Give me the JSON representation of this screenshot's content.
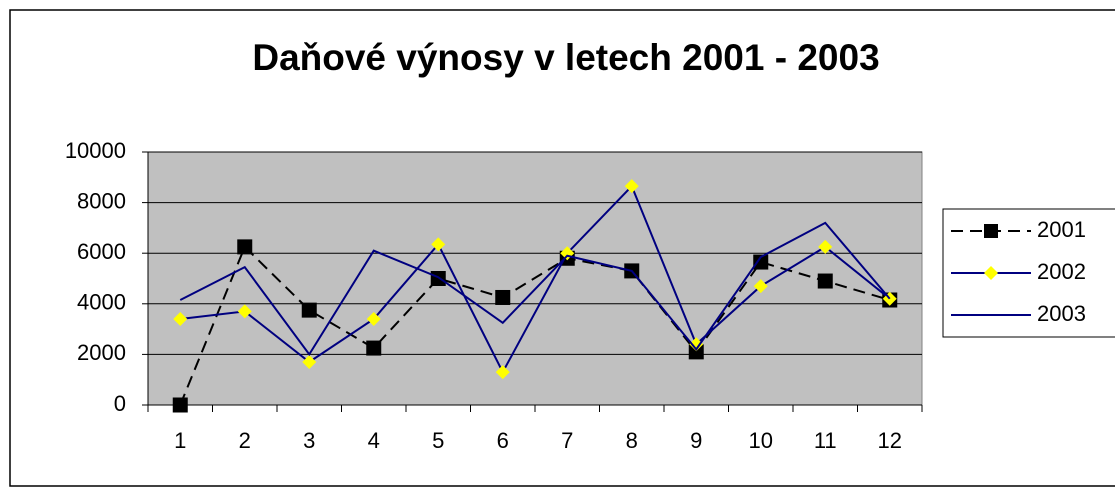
{
  "chart_data": {
    "type": "line",
    "title": "Daňové výnosy v letech 2001 - 2003",
    "categories": [
      "1",
      "2",
      "3",
      "4",
      "5",
      "6",
      "7",
      "8",
      "9",
      "10",
      "11",
      "12"
    ],
    "series": [
      {
        "name": "2001",
        "color": "#000000",
        "line_style": "dashed",
        "marker": "square",
        "marker_color": "#000000",
        "values": [
          0,
          6250,
          3750,
          2250,
          5000,
          4250,
          5800,
          5300,
          2100,
          5650,
          4900,
          4150
        ]
      },
      {
        "name": "2002",
        "color": "#000080",
        "marker": "diamond",
        "marker_color": "#ffff00",
        "values": [
          3400,
          3700,
          1700,
          3400,
          6350,
          1300,
          6000,
          8650,
          2400,
          4700,
          6250,
          4200
        ]
      },
      {
        "name": "2003",
        "color": "#000080",
        "values": [
          4150,
          5450,
          2000,
          6100,
          5050,
          3250,
          5900,
          5300,
          2200,
          5850,
          7200,
          4200
        ]
      }
    ],
    "ylim": [
      0,
      10000
    ],
    "yticks": [
      0,
      2000,
      4000,
      6000,
      8000,
      10000
    ],
    "grid": true,
    "plot_background": "#c0c0c0",
    "legend": "right"
  }
}
